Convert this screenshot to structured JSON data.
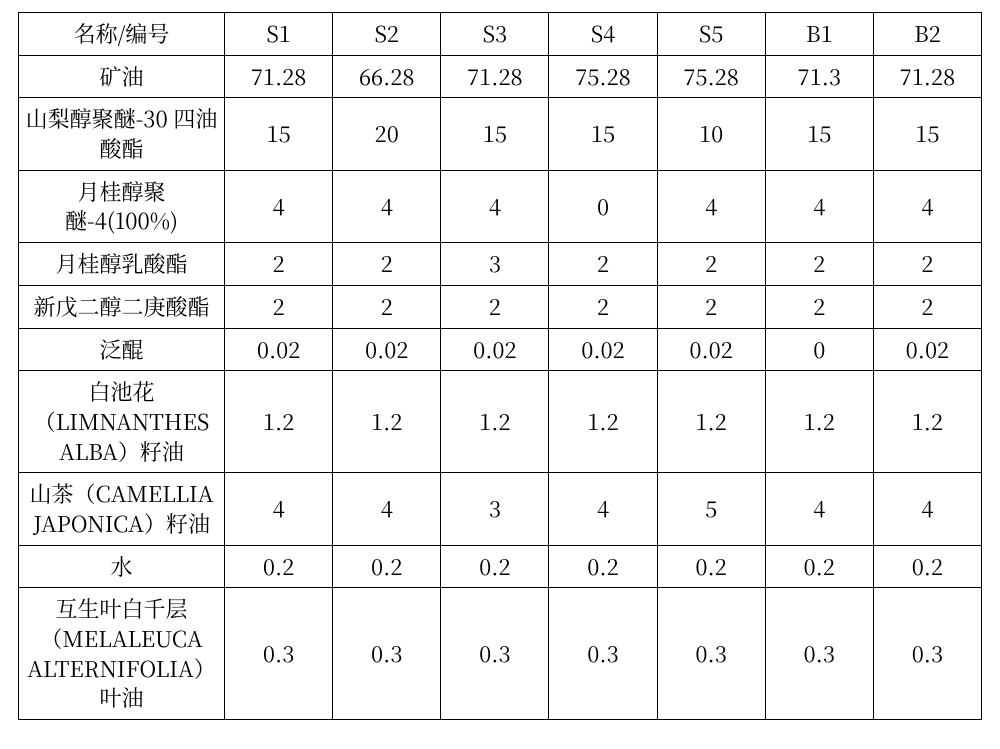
{
  "type": "table",
  "background_color": "#ffffff",
  "border_color": "#000000",
  "text_color": "#000000",
  "font_family": "SimSun",
  "cell_fontsize_pt": 16,
  "columns": [
    {
      "key": "name",
      "label": "名称/编号",
      "align": "center",
      "width_pct": 21.4
    },
    {
      "key": "S1",
      "label": "S1",
      "align": "center",
      "width_pct": 11.23
    },
    {
      "key": "S2",
      "label": "S2",
      "align": "center",
      "width_pct": 11.23
    },
    {
      "key": "S3",
      "label": "S3",
      "align": "center",
      "width_pct": 11.23
    },
    {
      "key": "S4",
      "label": "S4",
      "align": "center",
      "width_pct": 11.23
    },
    {
      "key": "S5",
      "label": "S5",
      "align": "center",
      "width_pct": 11.23
    },
    {
      "key": "B1",
      "label": "B1",
      "align": "center",
      "width_pct": 11.23
    },
    {
      "key": "B2",
      "label": "B2",
      "align": "center",
      "width_pct": 11.23
    }
  ],
  "row_labels": [
    "名称/编号",
    "矿油",
    "山梨醇聚醚-30 四油酸酯",
    "月桂醇聚醚-4(100%)",
    "月桂醇乳酸酯",
    "新戊二醇二庚酸酯",
    "泛醌",
    "白池花（LIMNANTHES ALBA）籽油",
    "山茶（CAMELLIA JAPONICA）籽油",
    "水",
    "互生叶白千层（MELALEUCA ALTERNIFOLIA）叶油"
  ],
  "rows": [
    [
      "S1",
      "S2",
      "S3",
      "S4",
      "S5",
      "B1",
      "B2"
    ],
    [
      "71.28",
      "66.28",
      "71.28",
      "75.28",
      "75.28",
      "71.3",
      "71.28"
    ],
    [
      "15",
      "20",
      "15",
      "15",
      "10",
      "15",
      "15"
    ],
    [
      "4",
      "4",
      "4",
      "0",
      "4",
      "4",
      "4"
    ],
    [
      "2",
      "2",
      "3",
      "2",
      "2",
      "2",
      "2"
    ],
    [
      "2",
      "2",
      "2",
      "2",
      "2",
      "2",
      "2"
    ],
    [
      "0.02",
      "0.02",
      "0.02",
      "0.02",
      "0.02",
      "0",
      "0.02"
    ],
    [
      "1.2",
      "1.2",
      "1.2",
      "1.2",
      "1.2",
      "1.2",
      "1.2"
    ],
    [
      "4",
      "4",
      "3",
      "4",
      "5",
      "4",
      "4"
    ],
    [
      "0.2",
      "0.2",
      "0.2",
      "0.2",
      "0.2",
      "0.2",
      "0.2"
    ],
    [
      "0.3",
      "0.3",
      "0.3",
      "0.3",
      "0.3",
      "0.3",
      "0.3"
    ]
  ]
}
